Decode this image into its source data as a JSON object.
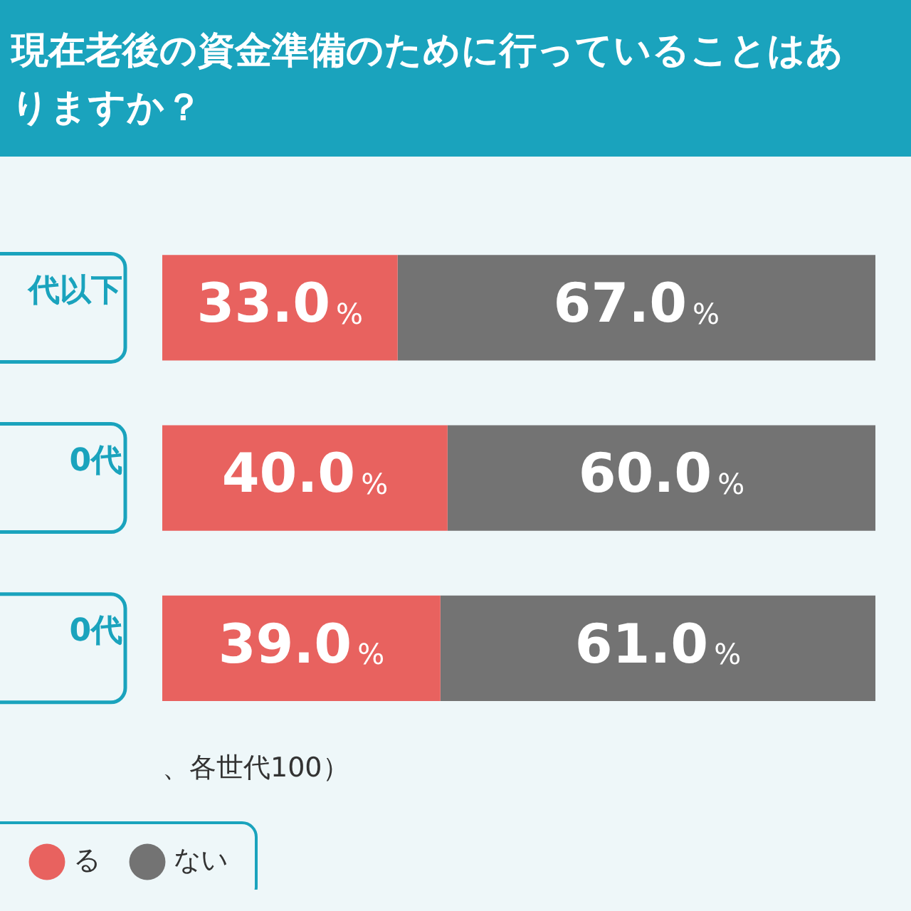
{
  "chart_data": {
    "type": "bar",
    "orientation": "horizontal",
    "stacked": true,
    "title": "現在老後の資金準備のために行っていることはありますか？",
    "categories": [
      "代以下",
      "0代",
      "0代"
    ],
    "series": [
      {
        "name": "る",
        "color": "#e8625f",
        "values": [
          33.0,
          40.0,
          39.0
        ],
        "value_labels": [
          "33.0%",
          "40.0%",
          "39.0%"
        ]
      },
      {
        "name": "ない",
        "color": "#737373",
        "values": [
          67.0,
          60.0,
          61.0
        ],
        "value_labels": [
          "67.0%",
          "60.0%",
          "61.0%"
        ]
      }
    ],
    "xlim": [
      0,
      100
    ],
    "tick_labels": "y",
    "grid": false,
    "legend": "bottom left",
    "annotations": [
      "、各世代100）"
    ]
  }
}
